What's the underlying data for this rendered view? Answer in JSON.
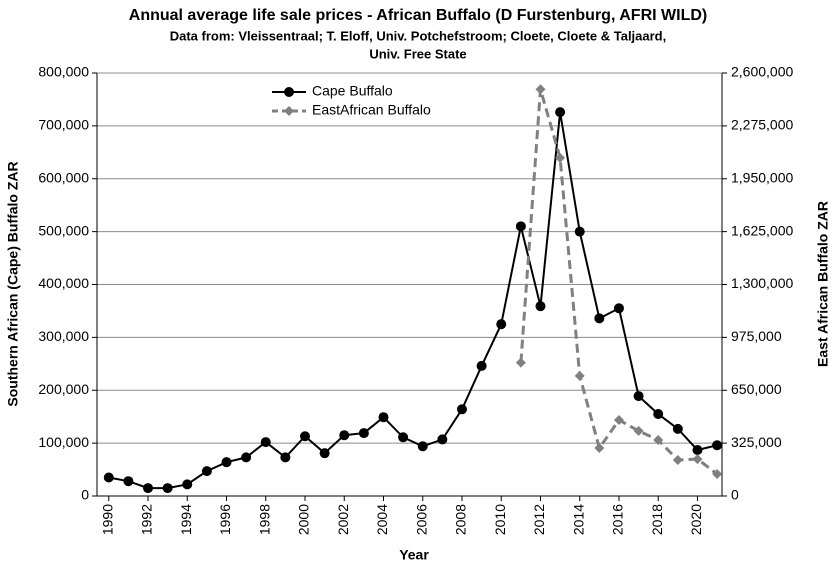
{
  "chart_data": {
    "type": "line",
    "title": "Annual average life sale prices - African Buffalo (D Furstenburg, AFRI WILD)",
    "subtitle": [
      "Data from: Vleissentraal; T. Eloff, Univ. Potchefstroom; Cloete, Cloete & Taljaard,",
      "Univ. Free State"
    ],
    "x_label": "Year",
    "y_label": "Southern African (Cape) Buffalo ZAR",
    "y2_label": "East African Buffalo ZAR",
    "x": [
      1990,
      1991,
      1992,
      1993,
      1994,
      1995,
      1996,
      1997,
      1998,
      1999,
      2000,
      2001,
      2002,
      2003,
      2004,
      2005,
      2006,
      2007,
      2008,
      2009,
      2010,
      2011,
      2012,
      2013,
      2014,
      2015,
      2016,
      2017,
      2018,
      2019,
      2020,
      2021
    ],
    "series": [
      {
        "name": "Cape Buffalo",
        "color": "#000000",
        "marker": "circle",
        "dashed": false,
        "axis": "y",
        "values": [
          35000,
          28000,
          15000,
          15000,
          22000,
          47000,
          64000,
          73000,
          102000,
          73000,
          113000,
          81000,
          115000,
          119000,
          149000,
          111000,
          94000,
          107000,
          164000,
          246000,
          325000,
          510000,
          359000,
          726000,
          500000,
          336000,
          355000,
          189000,
          155000,
          127000,
          87000,
          96000
        ]
      },
      {
        "name": "EastAfrican Buffalo",
        "color": "#808080",
        "marker": "diamond",
        "dashed": true,
        "axis": "y2",
        "values": [
          null,
          null,
          null,
          null,
          null,
          null,
          null,
          null,
          null,
          null,
          null,
          null,
          null,
          null,
          null,
          null,
          null,
          null,
          null,
          null,
          null,
          820000,
          2500000,
          2078000,
          738000,
          295000,
          467000,
          400000,
          344000,
          221000,
          227000,
          135000
        ]
      }
    ],
    "xlim": [
      1989.4,
      2021.25
    ],
    "xticks": [
      1990,
      1992,
      1994,
      1996,
      1998,
      2000,
      2002,
      2004,
      2006,
      2008,
      2010,
      2012,
      2014,
      2016,
      2018,
      2020
    ],
    "ylim": [
      0,
      800000
    ],
    "yticks": [
      0,
      {
        "value": 100000,
        "label": "100,000"
      },
      {
        "value": 200000,
        "label": "200,000"
      },
      {
        "value": 300000,
        "label": "300,000"
      },
      {
        "value": 400000,
        "label": "400,000"
      },
      {
        "value": 500000,
        "label": "500,000"
      },
      {
        "value": 600000,
        "label": "600,000"
      },
      {
        "value": 700000,
        "label": "700,000"
      },
      {
        "value": 800000,
        "label": "800,000"
      }
    ],
    "y2lim": [
      0,
      2600000
    ],
    "y2ticks": [
      0,
      {
        "value": 325000,
        "label": "325,000"
      },
      {
        "value": 650000,
        "label": "650,000"
      },
      {
        "value": 975000,
        "label": "975,000"
      },
      {
        "value": 1300000,
        "label": "1,300,000"
      },
      {
        "value": 1625000,
        "label": "1,625,000"
      },
      {
        "value": 1950000,
        "label": "1,950,000"
      },
      {
        "value": 2275000,
        "label": "2,275,000"
      },
      {
        "value": 2600000,
        "label": "2,600,000"
      }
    ],
    "grid": true,
    "legend": "top-center"
  }
}
